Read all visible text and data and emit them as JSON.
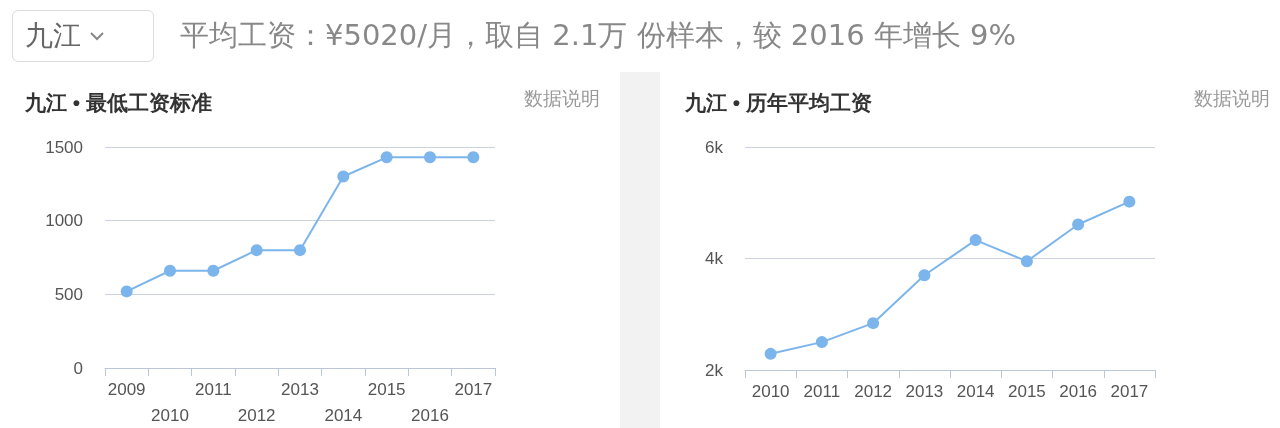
{
  "chart_data": [
    {
      "type": "line",
      "title": "九江 • 最低工资标准",
      "annotations": [
        "九江",
        "平均工资：¥5020/月，取自 2.1万 份样本，较 2016 年增长 9%",
        "数据说明"
      ],
      "categories": [
        "2009",
        "2010",
        "2011",
        "2012",
        "2013",
        "2014",
        "2015",
        "2016",
        "2017"
      ],
      "series": [
        {
          "color": "#7cb5ec",
          "values": [
            520,
            660,
            660,
            800,
            800,
            1300,
            1430,
            1430,
            1430
          ]
        }
      ],
      "ylim": [
        0,
        1500
      ],
      "yticks": [
        0,
        500,
        1000,
        1500
      ],
      "grid": "y",
      "marker": "circle"
    },
    {
      "type": "line",
      "title": "九江 • 历年平均工资",
      "annotations": [
        "数据说明"
      ],
      "categories": [
        "2010",
        "2011",
        "2012",
        "2013",
        "2014",
        "2015",
        "2016",
        "2017"
      ],
      "series": [
        {
          "color": "#7cb5ec",
          "values": [
            2290,
            2500,
            2840,
            3700,
            4330,
            3950,
            4610,
            5020
          ]
        }
      ],
      "ylim": [
        2000,
        6000
      ],
      "yticks": [
        {
          "value": 2000,
          "label": "2k"
        },
        {
          "value": 4000,
          "label": "4k"
        },
        {
          "value": 6000,
          "label": "6k"
        }
      ],
      "grid": "y",
      "marker": "circle"
    }
  ]
}
